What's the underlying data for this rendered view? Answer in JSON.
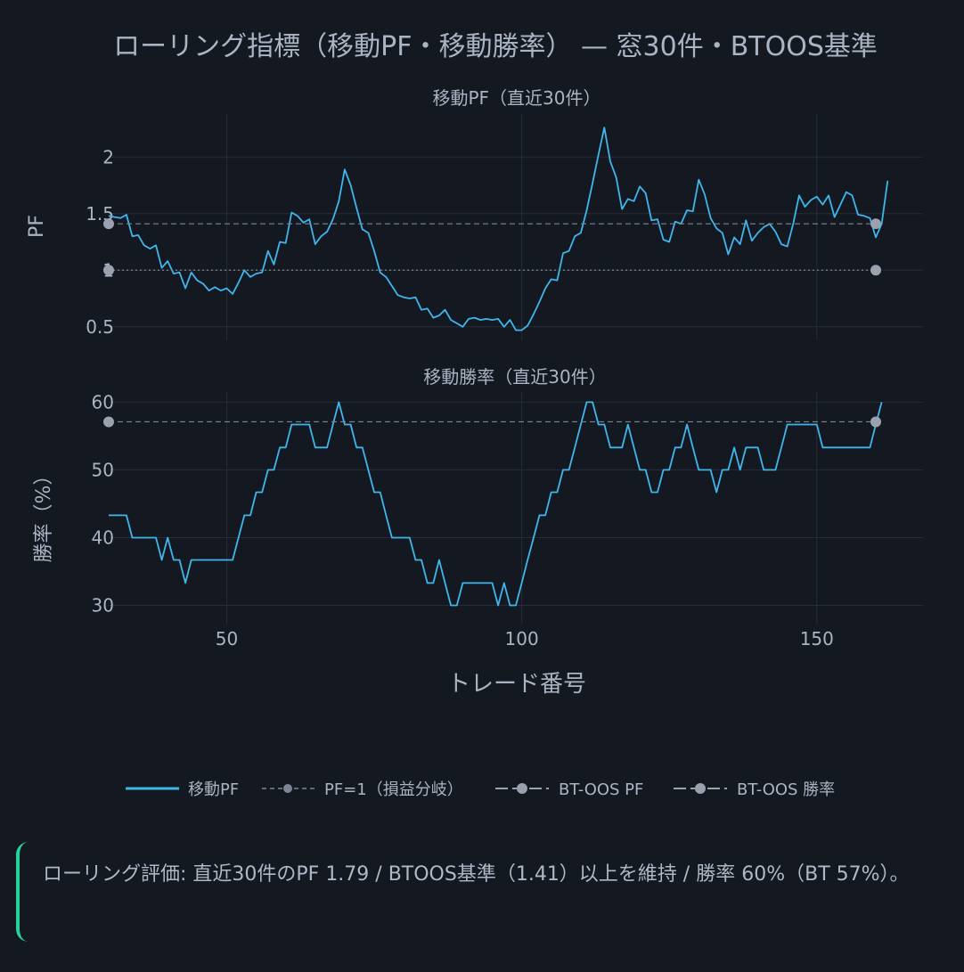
{
  "colors": {
    "background": "#131821",
    "grid": "#262d38",
    "text": "#aab4c3",
    "pf_line": "#3fb6ec",
    "ref_line": "#7c8594",
    "bt_marker": "#9aa2af",
    "note_border": "#23d39a"
  },
  "chart_data": {
    "type": "line",
    "title": "ローリング指標（移動PF・移動勝率） — 窓30件・BTOOS基準",
    "xlabel": "トレード番号",
    "x_ticks": [
      "50",
      "100",
      "150"
    ],
    "xlim": [
      30,
      168
    ],
    "panels": [
      {
        "subtitle": "移動PF（直近30件）",
        "ylabel": "PF",
        "ylim": [
          0.38,
          2.38
        ],
        "y_ticks": [
          {
            "value": 0.5,
            "label": "0.5"
          },
          {
            "value": 1,
            "label": "1"
          },
          {
            "value": 1.5,
            "label": "1.5"
          },
          {
            "value": 2,
            "label": "2"
          }
        ],
        "series": [
          {
            "name": "移動PF",
            "x_start": 30,
            "values": [
              1.48,
              1.47,
              1.46,
              1.49,
              1.3,
              1.31,
              1.22,
              1.19,
              1.22,
              1.02,
              1.08,
              0.97,
              0.98,
              0.84,
              0.98,
              0.91,
              0.88,
              0.82,
              0.85,
              0.82,
              0.84,
              0.79,
              0.89,
              1.0,
              0.94,
              0.97,
              0.98,
              1.17,
              1.05,
              1.25,
              1.24,
              1.51,
              1.48,
              1.42,
              1.45,
              1.23,
              1.3,
              1.34,
              1.45,
              1.61,
              1.89,
              1.75,
              1.55,
              1.36,
              1.33,
              1.17,
              0.98,
              0.94,
              0.86,
              0.78,
              0.76,
              0.75,
              0.76,
              0.65,
              0.66,
              0.58,
              0.6,
              0.65,
              0.56,
              0.53,
              0.5,
              0.57,
              0.58,
              0.56,
              0.57,
              0.56,
              0.57,
              0.5,
              0.56,
              0.47,
              0.47,
              0.51,
              0.61,
              0.72,
              0.84,
              0.92,
              0.91,
              1.15,
              1.17,
              1.3,
              1.33,
              1.53,
              1.77,
              2.02,
              2.26,
              1.96,
              1.82,
              1.54,
              1.63,
              1.61,
              1.74,
              1.68,
              1.44,
              1.45,
              1.27,
              1.25,
              1.43,
              1.41,
              1.53,
              1.52,
              1.8,
              1.67,
              1.46,
              1.37,
              1.33,
              1.14,
              1.29,
              1.23,
              1.44,
              1.26,
              1.33,
              1.38,
              1.41,
              1.34,
              1.23,
              1.21,
              1.41,
              1.66,
              1.56,
              1.62,
              1.65,
              1.58,
              1.66,
              1.47,
              1.58,
              1.69,
              1.66,
              1.49,
              1.48,
              1.46,
              1.29,
              1.41,
              1.79
            ]
          },
          {
            "name": "PF=1（損益分岐）",
            "x": [
              30,
              160
            ],
            "y": [
              1,
              1
            ]
          },
          {
            "name": "BT-OOS PF",
            "x": [
              30,
              160
            ],
            "y": [
              1.41,
              1.41
            ]
          }
        ]
      },
      {
        "subtitle": "移動勝率（直近30件）",
        "ylabel": "勝率（%）",
        "ylim": [
          27.3,
          61.5
        ],
        "y_ticks": [
          {
            "value": 30,
            "label": "30"
          },
          {
            "value": 40,
            "label": "40"
          },
          {
            "value": 50,
            "label": "50"
          },
          {
            "value": 60,
            "label": "60"
          }
        ],
        "series": [
          {
            "name": "移動勝率",
            "x_start": 30,
            "values": [
              43.3,
              43.3,
              43.3,
              43.3,
              40,
              40,
              40,
              40,
              40,
              36.7,
              40,
              36.7,
              36.7,
              33.3,
              36.7,
              36.7,
              36.7,
              36.7,
              36.7,
              36.7,
              36.7,
              36.7,
              40,
              43.3,
              43.3,
              46.7,
              46.7,
              50,
              50,
              53.3,
              53.3,
              56.7,
              56.7,
              56.7,
              56.7,
              53.3,
              53.3,
              53.3,
              56.7,
              60,
              56.7,
              56.7,
              53.3,
              53.3,
              50,
              46.7,
              46.7,
              43.3,
              40,
              40,
              40,
              40,
              36.7,
              36.7,
              33.3,
              33.3,
              36.7,
              33.3,
              30,
              30,
              33.3,
              33.3,
              33.3,
              33.3,
              33.3,
              33.3,
              30,
              33.3,
              30,
              30,
              33.3,
              36.7,
              40,
              43.3,
              43.3,
              46.7,
              46.7,
              50,
              50,
              53.3,
              56.7,
              60,
              60,
              56.7,
              56.7,
              53.3,
              53.3,
              53.3,
              56.7,
              53.3,
              50,
              50,
              46.7,
              46.7,
              50,
              50,
              53.3,
              53.3,
              56.7,
              53.3,
              50,
              50,
              50,
              46.7,
              50,
              50,
              53.3,
              50,
              53.3,
              53.3,
              53.3,
              50,
              50,
              50,
              53.3,
              56.7,
              56.7,
              56.7,
              56.7,
              56.7,
              56.7,
              53.3,
              53.3,
              53.3,
              53.3,
              53.3,
              53.3,
              53.3,
              53.3,
              53.3,
              56.7,
              60
            ]
          },
          {
            "name": "BT-OOS 勝率",
            "x": [
              30,
              160
            ],
            "y": [
              57.1,
              57.1
            ]
          }
        ]
      }
    ],
    "legend": {
      "position": "bottom",
      "entries": [
        "移動PF",
        "PF=1（損益分岐）",
        "BT-OOS PF",
        "BT-OOS 勝率"
      ]
    }
  },
  "note": {
    "text": "ローリング評価: 直近30件のPF 1.79 / BTOOS基準（1.41）以上を維持 / 勝率 60%（BT 57%）。"
  }
}
